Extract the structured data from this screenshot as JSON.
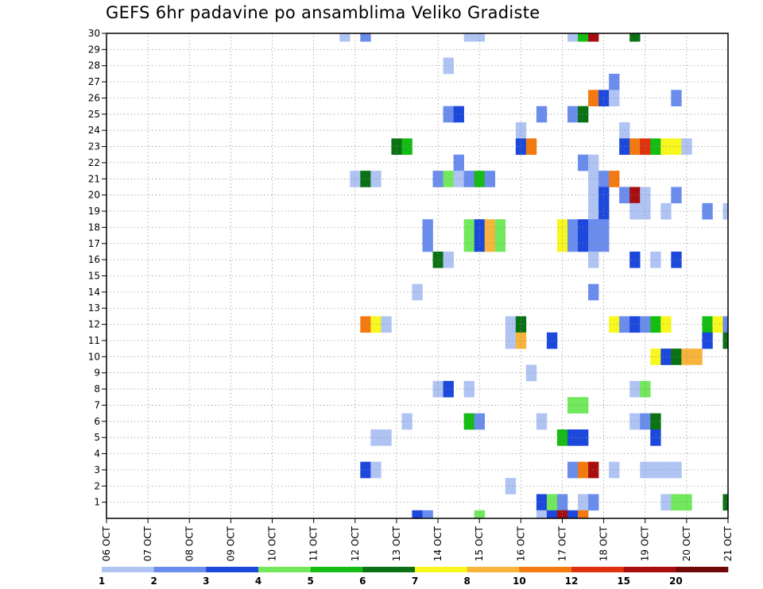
{
  "chart_data": {
    "type": "heatmap",
    "title": "GEFS 6hr padavine po ansamblima Veliko Gradiste",
    "xlabel": "",
    "ylabel": "",
    "x_tick_labels": [
      "06 OCT",
      "07 OCT",
      "08 OCT",
      "09 OCT",
      "10 OCT",
      "11 OCT",
      "12 OCT",
      "13 OCT",
      "14 OCT",
      "15 OCT",
      "16 OCT",
      "17 OCT",
      "18 OCT",
      "19 OCT",
      "20 OCT",
      "21 OCT"
    ],
    "y_ticks": [
      1,
      2,
      3,
      4,
      5,
      6,
      7,
      8,
      9,
      10,
      11,
      12,
      13,
      14,
      15,
      16,
      17,
      18,
      19,
      20,
      21,
      22,
      23,
      24,
      25,
      26,
      27,
      28,
      29,
      30
    ],
    "xlim": [
      0,
      60
    ],
    "ylim": [
      0,
      30
    ],
    "x_step_hours": 6,
    "grid": true,
    "colorbar": {
      "levels": [
        1,
        2,
        3,
        4,
        5,
        6,
        7,
        8,
        10,
        12,
        15,
        20
      ],
      "labels": [
        "1",
        "2",
        "3",
        "4",
        "5",
        "6",
        "7",
        "8",
        "10",
        "12",
        "15",
        "20"
      ],
      "colors": [
        "#b0c4f4",
        "#6a8cec",
        "#1c48dc",
        "#72e85c",
        "#14bc14",
        "#0a7214",
        "#f8f81e",
        "#f8b43a",
        "#f27a10",
        "#e0300c",
        "#a80e10",
        "#700808"
      ]
    },
    "cells": [
      [
        30,
        23,
        1
      ],
      [
        30,
        25,
        2
      ],
      [
        30,
        35,
        1
      ],
      [
        30,
        36,
        1
      ],
      [
        30,
        45,
        1
      ],
      [
        30,
        46,
        5
      ],
      [
        30,
        47,
        11
      ],
      [
        30,
        51,
        6
      ],
      [
        28,
        33,
        1
      ],
      [
        27,
        49,
        2
      ],
      [
        26,
        47,
        9
      ],
      [
        26,
        48,
        3
      ],
      [
        26,
        49,
        1
      ],
      [
        26,
        55,
        2
      ],
      [
        25,
        33,
        2
      ],
      [
        25,
        34,
        3
      ],
      [
        25,
        42,
        2
      ],
      [
        25,
        45,
        2
      ],
      [
        25,
        46,
        6
      ],
      [
        24,
        40,
        1
      ],
      [
        24,
        50,
        1
      ],
      [
        23,
        28,
        6
      ],
      [
        23,
        29,
        5
      ],
      [
        23,
        40,
        3
      ],
      [
        23,
        41,
        9
      ],
      [
        23,
        50,
        3
      ],
      [
        23,
        51,
        9
      ],
      [
        23,
        52,
        10
      ],
      [
        23,
        53,
        5
      ],
      [
        23,
        54,
        7
      ],
      [
        23,
        55,
        7
      ],
      [
        23,
        56,
        1
      ],
      [
        22,
        34,
        2
      ],
      [
        22,
        46,
        2
      ],
      [
        22,
        47,
        1
      ],
      [
        21,
        24,
        1
      ],
      [
        21,
        25,
        6
      ],
      [
        21,
        26,
        1
      ],
      [
        21,
        32,
        2
      ],
      [
        21,
        33,
        4
      ],
      [
        21,
        34,
        1
      ],
      [
        21,
        35,
        2
      ],
      [
        21,
        36,
        5
      ],
      [
        21,
        37,
        2
      ],
      [
        21,
        47,
        1
      ],
      [
        21,
        48,
        2
      ],
      [
        21,
        49,
        9
      ],
      [
        20,
        47,
        1
      ],
      [
        20,
        48,
        3
      ],
      [
        20,
        50,
        2
      ],
      [
        20,
        51,
        11
      ],
      [
        20,
        52,
        1
      ],
      [
        20,
        55,
        2
      ],
      [
        19,
        47,
        1
      ],
      [
        19,
        48,
        3
      ],
      [
        19,
        51,
        1
      ],
      [
        19,
        52,
        1
      ],
      [
        19,
        54,
        1
      ],
      [
        19,
        58,
        2
      ],
      [
        19,
        60,
        1
      ],
      [
        18,
        31,
        2
      ],
      [
        18,
        35,
        4
      ],
      [
        18,
        36,
        3
      ],
      [
        18,
        37,
        8
      ],
      [
        18,
        38,
        4
      ],
      [
        18,
        44,
        7
      ],
      [
        18,
        45,
        2
      ],
      [
        18,
        46,
        3
      ],
      [
        18,
        47,
        2
      ],
      [
        18,
        48,
        2
      ],
      [
        17,
        31,
        2
      ],
      [
        17,
        35,
        4
      ],
      [
        17,
        36,
        3
      ],
      [
        17,
        37,
        8
      ],
      [
        17,
        38,
        4
      ],
      [
        17,
        44,
        7
      ],
      [
        17,
        45,
        2
      ],
      [
        17,
        46,
        3
      ],
      [
        17,
        47,
        2
      ],
      [
        17,
        48,
        2
      ],
      [
        16,
        32,
        6
      ],
      [
        16,
        33,
        1
      ],
      [
        16,
        47,
        1
      ],
      [
        16,
        51,
        3
      ],
      [
        16,
        53,
        1
      ],
      [
        16,
        55,
        3
      ],
      [
        14,
        30,
        1
      ],
      [
        14,
        47,
        2
      ],
      [
        12,
        25,
        9
      ],
      [
        12,
        26,
        7
      ],
      [
        12,
        27,
        1
      ],
      [
        12,
        39,
        1
      ],
      [
        12,
        40,
        6
      ],
      [
        12,
        49,
        7
      ],
      [
        12,
        50,
        2
      ],
      [
        12,
        51,
        3
      ],
      [
        12,
        52,
        2
      ],
      [
        12,
        53,
        5
      ],
      [
        12,
        54,
        7
      ],
      [
        12,
        58,
        5
      ],
      [
        12,
        59,
        7
      ],
      [
        12,
        60,
        2
      ],
      [
        11,
        39,
        1
      ],
      [
        11,
        40,
        8
      ],
      [
        11,
        43,
        3
      ],
      [
        11,
        58,
        3
      ],
      [
        11,
        60,
        6
      ],
      [
        10,
        53,
        7
      ],
      [
        10,
        54,
        3
      ],
      [
        10,
        55,
        6
      ],
      [
        10,
        56,
        8
      ],
      [
        10,
        57,
        8
      ],
      [
        9,
        41,
        1
      ],
      [
        8,
        32,
        1
      ],
      [
        8,
        33,
        3
      ],
      [
        8,
        35,
        1
      ],
      [
        8,
        51,
        1
      ],
      [
        8,
        52,
        4
      ],
      [
        7,
        45,
        4
      ],
      [
        7,
        46,
        4
      ],
      [
        6,
        29,
        1
      ],
      [
        6,
        35,
        5
      ],
      [
        6,
        36,
        2
      ],
      [
        6,
        42,
        1
      ],
      [
        6,
        51,
        1
      ],
      [
        6,
        52,
        2
      ],
      [
        6,
        53,
        6
      ],
      [
        5,
        26,
        1
      ],
      [
        5,
        27,
        1
      ],
      [
        5,
        44,
        5
      ],
      [
        5,
        45,
        3
      ],
      [
        5,
        46,
        3
      ],
      [
        5,
        53,
        3
      ],
      [
        3,
        25,
        3
      ],
      [
        3,
        26,
        1
      ],
      [
        3,
        45,
        2
      ],
      [
        3,
        46,
        9
      ],
      [
        3,
        47,
        11
      ],
      [
        3,
        49,
        1
      ],
      [
        3,
        52,
        1
      ],
      [
        3,
        53,
        1
      ],
      [
        3,
        54,
        1
      ],
      [
        3,
        55,
        1
      ],
      [
        2,
        39,
        1
      ],
      [
        1,
        42,
        3
      ],
      [
        1,
        43,
        4
      ],
      [
        1,
        44,
        2
      ],
      [
        1,
        46,
        1
      ],
      [
        1,
        47,
        2
      ],
      [
        1,
        54,
        1
      ],
      [
        1,
        55,
        4
      ],
      [
        1,
        56,
        4
      ],
      [
        1,
        60,
        6
      ],
      [
        0,
        30,
        3
      ],
      [
        0,
        31,
        2
      ],
      [
        0,
        36,
        4
      ],
      [
        0,
        42,
        1
      ],
      [
        0,
        43,
        3
      ],
      [
        0,
        44,
        11
      ],
      [
        0,
        45,
        3
      ],
      [
        0,
        46,
        9
      ]
    ]
  }
}
